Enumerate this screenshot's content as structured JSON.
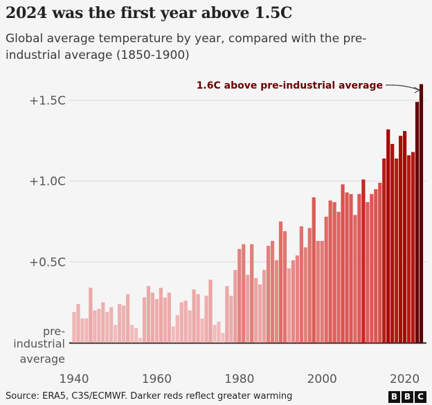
{
  "title": "2024 was the first year above 1.5C",
  "subtitle": "Global average temperature by year, compared with the pre-industrial average (1850-1900)",
  "footer": {
    "source": "Source: ERA5, C3S/ECMWF. Darker reds reflect greater warming",
    "logo_letters": [
      "B",
      "B",
      "C"
    ]
  },
  "chart_data": {
    "type": "bar",
    "title": "2024 was the first year above 1.5C",
    "ylabel": "",
    "xlabel": "",
    "ylim": [
      0,
      1.65
    ],
    "y_ticks": [
      {
        "value": 0.5,
        "label": "+0.5C"
      },
      {
        "value": 1.0,
        "label": "+1.0C"
      },
      {
        "value": 1.5,
        "label": "+1.5C"
      }
    ],
    "baseline_label": [
      "pre-",
      "industrial",
      "average"
    ],
    "x_ticks": [
      1940,
      1960,
      1980,
      2000,
      2020
    ],
    "grid": true,
    "annotation": {
      "text": "1.6C above pre-industrial average",
      "year": 2024
    },
    "colors": {
      "low": "#f4c4c4",
      "mid": "#d9504a",
      "high": "#a00000",
      "max": "#560000",
      "grid": "#d9d9d9",
      "annotation": "#6b0000"
    },
    "years": [
      1940,
      1941,
      1942,
      1943,
      1944,
      1945,
      1946,
      1947,
      1948,
      1949,
      1950,
      1951,
      1952,
      1953,
      1954,
      1955,
      1956,
      1957,
      1958,
      1959,
      1960,
      1961,
      1962,
      1963,
      1964,
      1965,
      1966,
      1967,
      1968,
      1969,
      1970,
      1971,
      1972,
      1973,
      1974,
      1975,
      1976,
      1977,
      1978,
      1979,
      1980,
      1981,
      1982,
      1983,
      1984,
      1985,
      1986,
      1987,
      1988,
      1989,
      1990,
      1991,
      1992,
      1993,
      1994,
      1995,
      1996,
      1997,
      1998,
      1999,
      2000,
      2001,
      2002,
      2003,
      2004,
      2005,
      2006,
      2007,
      2008,
      2009,
      2010,
      2011,
      2012,
      2013,
      2014,
      2015,
      2016,
      2017,
      2018,
      2019,
      2020,
      2021,
      2022,
      2023,
      2024
    ],
    "values": [
      0.19,
      0.24,
      0.15,
      0.15,
      0.34,
      0.2,
      0.21,
      0.25,
      0.19,
      0.22,
      0.11,
      0.24,
      0.23,
      0.3,
      0.11,
      0.09,
      0.03,
      0.28,
      0.35,
      0.31,
      0.27,
      0.34,
      0.28,
      0.31,
      0.1,
      0.17,
      0.25,
      0.26,
      0.2,
      0.33,
      0.3,
      0.15,
      0.29,
      0.39,
      0.11,
      0.13,
      0.06,
      0.35,
      0.29,
      0.45,
      0.58,
      0.61,
      0.42,
      0.61,
      0.4,
      0.36,
      0.45,
      0.6,
      0.63,
      0.51,
      0.75,
      0.69,
      0.46,
      0.51,
      0.54,
      0.72,
      0.59,
      0.71,
      0.9,
      0.63,
      0.63,
      0.78,
      0.88,
      0.87,
      0.81,
      0.98,
      0.93,
      0.92,
      0.79,
      0.92,
      1.01,
      0.87,
      0.92,
      0.95,
      0.99,
      1.14,
      1.32,
      1.23,
      1.14,
      1.28,
      1.31,
      1.16,
      1.18,
      1.49,
      1.6
    ]
  }
}
